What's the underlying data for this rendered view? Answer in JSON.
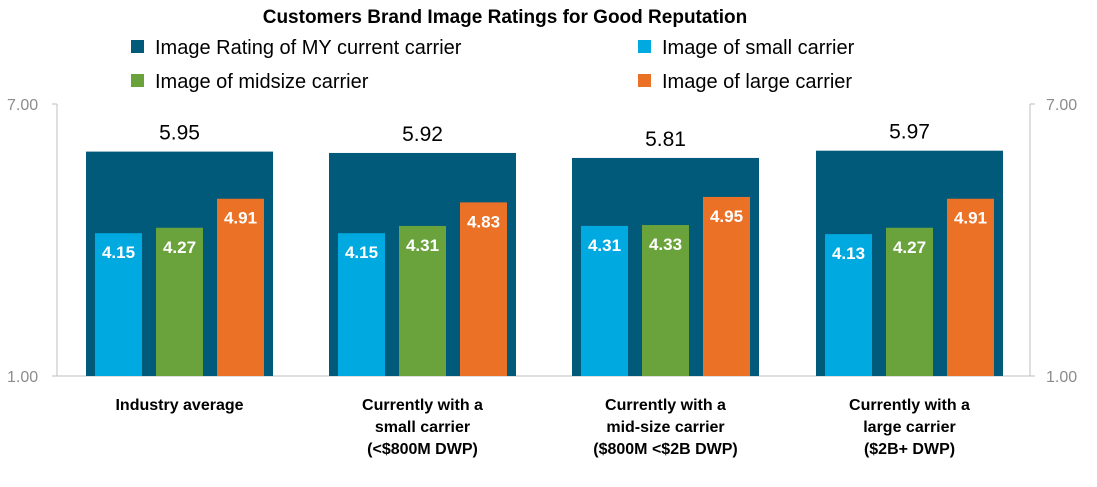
{
  "chart_data": {
    "type": "bar",
    "title": "Customers Brand Image Ratings for Good Reputation",
    "ylim": [
      1.0,
      7.0
    ],
    "y_ticks": [
      "7.00",
      "1.00"
    ],
    "grid": false,
    "legend_position": "top",
    "categories": [
      [
        "Industry average"
      ],
      [
        "Currently with a",
        "small carrier",
        "(<$800M DWP)"
      ],
      [
        "Currently with a",
        "mid-size carrier",
        "($800M <$2B DWP)"
      ],
      [
        "Currently with a",
        "large carrier",
        "($2B+ DWP)"
      ]
    ],
    "series": [
      {
        "name": "Image Rating of MY current carrier",
        "color": "#015a7a",
        "values": [
          5.95,
          5.92,
          5.81,
          5.97
        ],
        "labels": [
          "5.95",
          "5.92",
          "5.81",
          "5.97"
        ]
      },
      {
        "name": "Image of small carrier",
        "color": "#00a9e0",
        "values": [
          4.15,
          4.15,
          4.31,
          4.13
        ],
        "labels": [
          "4.15",
          "4.15",
          "4.31",
          "4.13"
        ]
      },
      {
        "name": "Image of midsize carrier",
        "color": "#6aa33c",
        "values": [
          4.27,
          4.31,
          4.33,
          4.27
        ],
        "labels": [
          "4.27",
          "4.31",
          "4.33",
          "4.27"
        ]
      },
      {
        "name": "Image of large carrier",
        "color": "#ea7125",
        "values": [
          4.91,
          4.83,
          4.95,
          4.91
        ],
        "labels": [
          "4.91",
          "4.83",
          "4.95",
          "4.91"
        ]
      }
    ]
  }
}
